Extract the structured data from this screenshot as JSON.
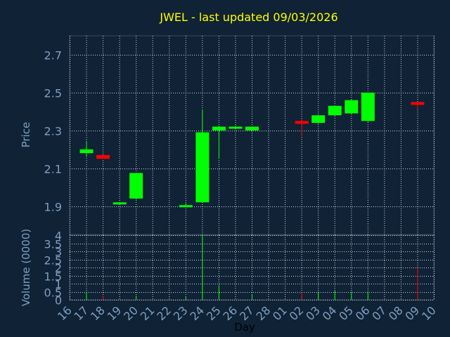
{
  "chart_data": {
    "type": "candlestick",
    "title": "JWEL - last updated 09/03/2026",
    "xlabel": "Day",
    "colors": {
      "background": "#0f2236",
      "title": "#ffff00",
      "axis_text": "#7f9fbf",
      "grid": "#ffffff",
      "up": "#00ff00",
      "down": "#ff0000"
    },
    "x_ticks": [
      "16",
      "17",
      "18",
      "19",
      "20",
      "21",
      "22",
      "23",
      "24",
      "25",
      "26",
      "27",
      "28",
      "01",
      "02",
      "03",
      "04",
      "05",
      "06",
      "07",
      "08",
      "09",
      "10"
    ],
    "price_panel": {
      "ylabel": "Price",
      "ylim": [
        1.75,
        2.8
      ],
      "y_ticks": [
        "1.9",
        "2.1",
        "2.3",
        "2.5",
        "2.7"
      ],
      "grid": true,
      "candles": [
        {
          "day": "17",
          "open": 2.18,
          "high": 2.245,
          "low": 2.165,
          "close": 2.2
        },
        {
          "day": "18",
          "open": 2.17,
          "high": 2.17,
          "low": 2.15,
          "close": 2.15
        },
        {
          "day": "19",
          "open": 1.915,
          "high": 1.92,
          "low": 1.915,
          "close": 1.92
        },
        {
          "day": "20",
          "open": 1.94,
          "high": 2.075,
          "low": 1.935,
          "close": 2.075
        },
        {
          "day": "23",
          "open": 1.9,
          "high": 1.915,
          "low": 1.9,
          "close": 1.905
        },
        {
          "day": "24",
          "open": 1.92,
          "high": 2.41,
          "low": 1.92,
          "close": 2.29
        },
        {
          "day": "25",
          "open": 2.3,
          "high": 2.325,
          "low": 2.15,
          "close": 2.32
        },
        {
          "day": "26",
          "open": 2.315,
          "high": 2.325,
          "low": 2.31,
          "close": 2.32
        },
        {
          "day": "27",
          "open": 2.3,
          "high": 2.32,
          "low": 2.3,
          "close": 2.32
        },
        {
          "day": "02",
          "open": 2.35,
          "high": 2.36,
          "low": 2.27,
          "close": 2.335
        },
        {
          "day": "03",
          "open": 2.34,
          "high": 2.38,
          "low": 2.335,
          "close": 2.38
        },
        {
          "day": "04",
          "open": 2.38,
          "high": 2.43,
          "low": 2.375,
          "close": 2.43
        },
        {
          "day": "05",
          "open": 2.39,
          "high": 2.465,
          "low": 2.385,
          "close": 2.46
        },
        {
          "day": "06",
          "open": 2.35,
          "high": 2.5,
          "low": 2.345,
          "close": 2.5
        },
        {
          "day": "09",
          "open": 2.45,
          "high": 2.45,
          "low": 2.41,
          "close": 2.435
        }
      ]
    },
    "volume_panel": {
      "ylabel": "Volume (0000)",
      "ylim": [
        0,
        4
      ],
      "y_ticks": [
        "0",
        "0.5",
        "1",
        "1.5",
        "2",
        "2.5",
        "3",
        "3.5",
        "4"
      ],
      "grid": true,
      "bars": [
        {
          "day": "17",
          "value": 0.5,
          "direction": "up"
        },
        {
          "day": "18",
          "value": 0.25,
          "direction": "down"
        },
        {
          "day": "20",
          "value": 0.25,
          "direction": "up"
        },
        {
          "day": "23",
          "value": 0.2,
          "direction": "up"
        },
        {
          "day": "24",
          "value": 4.0,
          "direction": "up"
        },
        {
          "day": "25",
          "value": 0.9,
          "direction": "up"
        },
        {
          "day": "27",
          "value": 0.3,
          "direction": "up"
        },
        {
          "day": "02",
          "value": 0.45,
          "direction": "down"
        },
        {
          "day": "03",
          "value": 0.5,
          "direction": "up"
        },
        {
          "day": "04",
          "value": 0.55,
          "direction": "up"
        },
        {
          "day": "05",
          "value": 0.5,
          "direction": "up"
        },
        {
          "day": "06",
          "value": 0.5,
          "direction": "up"
        },
        {
          "day": "09",
          "value": 2.0,
          "direction": "down"
        }
      ]
    }
  }
}
